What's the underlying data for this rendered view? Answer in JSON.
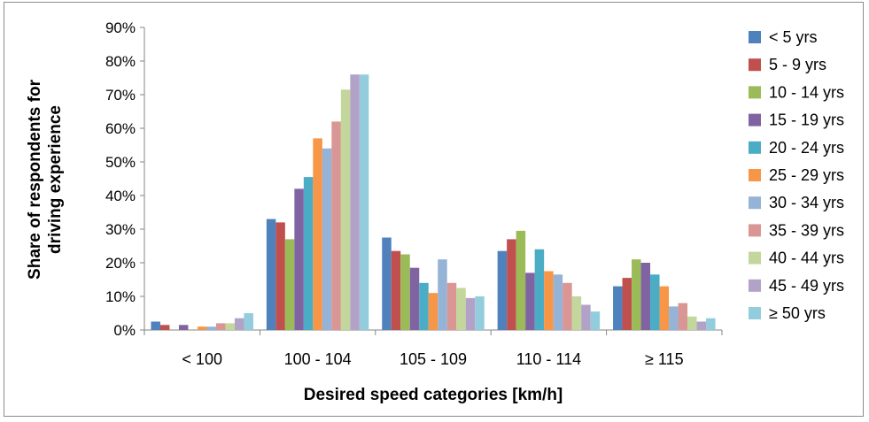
{
  "chart_data": {
    "type": "bar",
    "title": "",
    "xlabel": "Desired speed categories [km/h]",
    "ylabel": [
      "Share of respondents  for",
      "driving experience"
    ],
    "ylim": [
      0,
      90
    ],
    "yticks": [
      0,
      10,
      20,
      30,
      40,
      50,
      60,
      70,
      80,
      90
    ],
    "ytick_labels": [
      "0%",
      "10%",
      "20%",
      "30%",
      "40%",
      "50%",
      "60%",
      "70%",
      "80%",
      "90%"
    ],
    "grid": false,
    "legend_position": "right",
    "categories": [
      "< 100",
      "100 - 104",
      "105 - 109",
      "110 - 114",
      "≥ 115"
    ],
    "series": [
      {
        "name": "< 5 yrs",
        "color": "#4f81bd",
        "values": [
          2.5,
          33,
          27.5,
          23.5,
          13
        ]
      },
      {
        "name": "5 - 9 yrs",
        "color": "#c0504d",
        "values": [
          1.5,
          32,
          23.5,
          27,
          15.5
        ]
      },
      {
        "name": "10 - 14 yrs",
        "color": "#9bbb59",
        "values": [
          0,
          27,
          22.5,
          29.5,
          21
        ]
      },
      {
        "name": "15 - 19 yrs",
        "color": "#8064a2",
        "values": [
          1.5,
          42,
          18.5,
          17,
          20
        ]
      },
      {
        "name": "20 - 24 yrs",
        "color": "#4bacc6",
        "values": [
          0,
          45.5,
          14,
          24,
          16.5
        ]
      },
      {
        "name": "25 - 29 yrs",
        "color": "#f79646",
        "values": [
          1,
          57,
          11,
          17.5,
          13
        ]
      },
      {
        "name": "30 - 34 yrs",
        "color": "#95b3d7",
        "values": [
          1,
          54,
          21,
          16.5,
          7
        ]
      },
      {
        "name": "35 - 39 yrs",
        "color": "#d99694",
        "values": [
          2,
          62,
          14,
          14,
          8
        ]
      },
      {
        "name": "40 - 44 yrs",
        "color": "#c3d69b",
        "values": [
          2,
          71.5,
          12.5,
          10,
          4
        ]
      },
      {
        "name": "45 - 49 yrs",
        "color": "#b3a2c7",
        "values": [
          3.5,
          76,
          9.5,
          7.5,
          2.5
        ]
      },
      {
        "name": "≥ 50 yrs",
        "color": "#93cddd",
        "values": [
          5,
          76,
          10,
          5.5,
          3.5
        ]
      }
    ]
  }
}
